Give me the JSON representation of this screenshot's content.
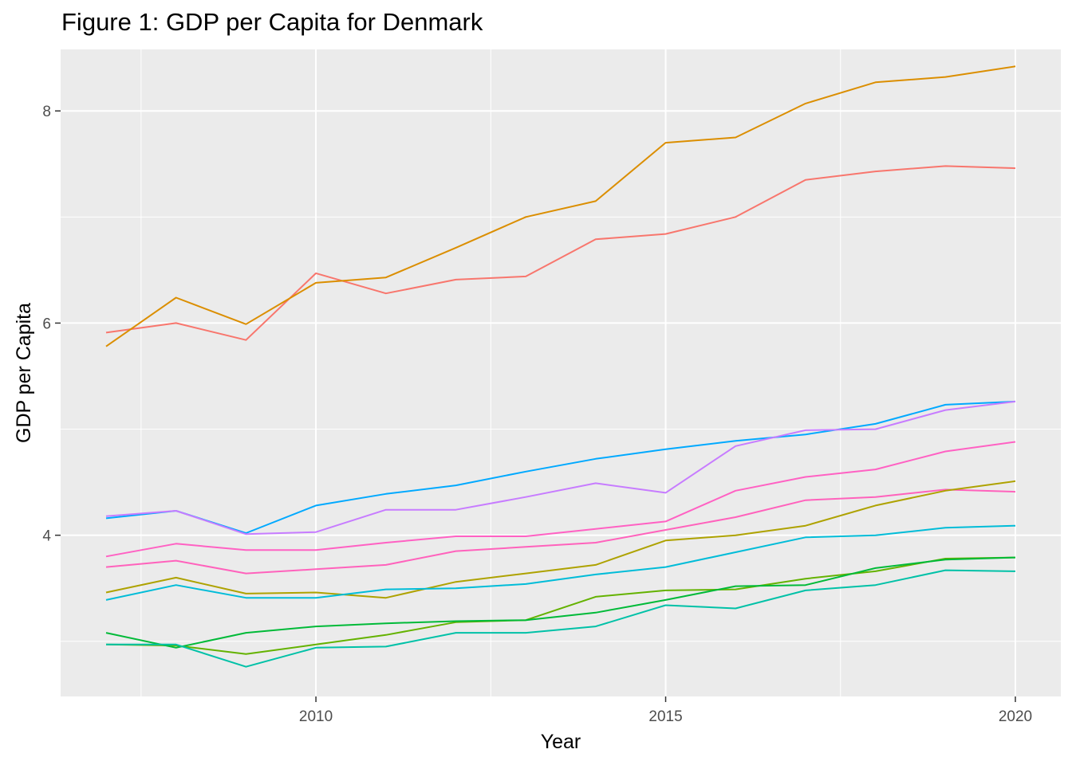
{
  "chart_data": {
    "type": "line",
    "title": "Figure 1: GDP per Capita for Denmark",
    "xlabel": "Year",
    "ylabel": "GDP per Capita",
    "xlim": [
      2006.35,
      2020.65
    ],
    "ylim": [
      2.48,
      8.58
    ],
    "x_ticks": [
      2010,
      2015,
      2020
    ],
    "y_ticks": [
      4,
      6,
      8
    ],
    "grid": true,
    "legend": "none",
    "x": [
      2007,
      2008,
      2009,
      2010,
      2011,
      2012,
      2013,
      2014,
      2015,
      2016,
      2017,
      2018,
      2019,
      2020
    ],
    "series": [
      {
        "color": "#F8766D",
        "values": [
          5.91,
          6.0,
          5.84,
          6.47,
          6.28,
          6.41,
          6.44,
          6.79,
          6.84,
          7.0,
          7.35,
          7.43,
          7.48,
          7.46
        ]
      },
      {
        "color": "#DB8E00",
        "values": [
          5.78,
          6.24,
          5.99,
          6.38,
          6.43,
          6.71,
          7.0,
          7.15,
          7.7,
          7.75,
          8.07,
          8.27,
          8.32,
          8.42
        ]
      },
      {
        "color": "#00A9FF",
        "values": [
          4.16,
          4.23,
          4.02,
          4.28,
          4.39,
          4.47,
          4.6,
          4.72,
          4.81,
          4.89,
          4.95,
          5.05,
          5.23,
          5.26
        ]
      },
      {
        "color": "#C77CFF",
        "values": [
          4.18,
          4.23,
          4.01,
          4.03,
          4.24,
          4.24,
          4.36,
          4.49,
          4.4,
          4.84,
          4.99,
          5.0,
          5.18,
          5.26
        ]
      },
      {
        "color": "#FF61C3",
        "values": [
          3.8,
          3.92,
          3.86,
          3.86,
          3.93,
          3.99,
          3.99,
          4.06,
          4.13,
          4.42,
          4.55,
          4.62,
          4.79,
          4.88
        ]
      },
      {
        "color": "#FF62BC",
        "values": [
          3.7,
          3.76,
          3.64,
          3.68,
          3.72,
          3.85,
          3.89,
          3.93,
          4.05,
          4.17,
          4.33,
          4.36,
          4.43,
          4.41
        ]
      },
      {
        "color": "#AEA200",
        "values": [
          3.46,
          3.6,
          3.45,
          3.46,
          3.41,
          3.56,
          3.64,
          3.72,
          3.95,
          4.0,
          4.09,
          4.28,
          4.42,
          4.51
        ]
      },
      {
        "color": "#00BCD8",
        "values": [
          3.39,
          3.53,
          3.41,
          3.41,
          3.49,
          3.5,
          3.54,
          3.63,
          3.7,
          3.84,
          3.98,
          4.0,
          4.07,
          4.09
        ]
      },
      {
        "color": "#64B200",
        "values": [
          2.97,
          2.96,
          2.88,
          2.97,
          3.06,
          3.18,
          3.2,
          3.42,
          3.48,
          3.49,
          3.59,
          3.66,
          3.78,
          3.79
        ]
      },
      {
        "color": "#00BA38",
        "values": [
          3.08,
          2.94,
          3.08,
          3.14,
          3.17,
          3.19,
          3.2,
          3.27,
          3.39,
          3.52,
          3.53,
          3.69,
          3.77,
          3.79
        ]
      },
      {
        "color": "#00C1A7",
        "values": [
          2.97,
          2.97,
          2.76,
          2.94,
          2.95,
          3.08,
          3.08,
          3.14,
          3.34,
          3.31,
          3.48,
          3.53,
          3.67,
          3.66
        ]
      }
    ]
  }
}
